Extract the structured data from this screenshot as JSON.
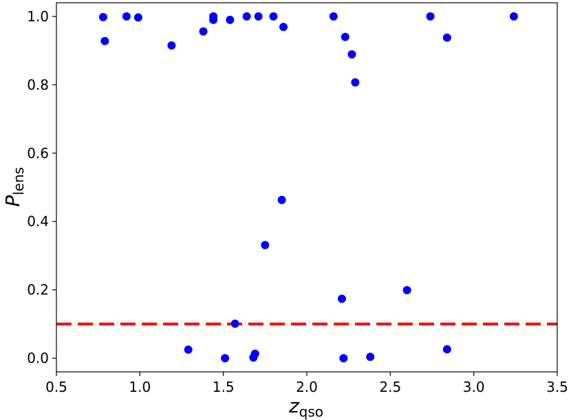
{
  "chart_data": {
    "type": "scatter",
    "title": "",
    "xlabel": {
      "main": "z",
      "sub": "qso"
    },
    "ylabel": {
      "main": "P",
      "sub": "lens"
    },
    "xlim": [
      0.5,
      3.5
    ],
    "ylim": [
      -0.04,
      1.04
    ],
    "xticks": [
      0.5,
      1.0,
      1.5,
      2.0,
      2.5,
      3.0,
      3.5
    ],
    "xtick_labels": [
      "0.5",
      "1.0",
      "1.5",
      "2.0",
      "2.5",
      "3.0",
      "3.5"
    ],
    "yticks": [
      0.0,
      0.2,
      0.4,
      0.6,
      0.8,
      1.0
    ],
    "ytick_labels": [
      "0.0",
      "0.2",
      "0.4",
      "0.6",
      "0.8",
      "1.0"
    ],
    "grid": false,
    "legend": "none",
    "point_color": "#0000ff",
    "threshold": {
      "y": 0.1,
      "style": "dashed",
      "color": "#ff0000"
    },
    "points": [
      {
        "x": 0.78,
        "y": 0.998
      },
      {
        "x": 0.79,
        "y": 0.928
      },
      {
        "x": 0.92,
        "y": 1.0
      },
      {
        "x": 0.99,
        "y": 0.997
      },
      {
        "x": 1.19,
        "y": 0.915
      },
      {
        "x": 1.29,
        "y": 0.025
      },
      {
        "x": 1.38,
        "y": 0.956
      },
      {
        "x": 1.44,
        "y": 1.0
      },
      {
        "x": 1.44,
        "y": 0.99
      },
      {
        "x": 1.51,
        "y": 0.0
      },
      {
        "x": 1.54,
        "y": 0.99
      },
      {
        "x": 1.57,
        "y": 0.101
      },
      {
        "x": 1.64,
        "y": 1.0
      },
      {
        "x": 1.68,
        "y": 0.002
      },
      {
        "x": 1.69,
        "y": 0.013
      },
      {
        "x": 1.71,
        "y": 1.0
      },
      {
        "x": 1.75,
        "y": 0.331
      },
      {
        "x": 1.8,
        "y": 1.0
      },
      {
        "x": 1.85,
        "y": 0.463
      },
      {
        "x": 1.86,
        "y": 0.969
      },
      {
        "x": 2.16,
        "y": 1.0
      },
      {
        "x": 2.21,
        "y": 0.174
      },
      {
        "x": 2.22,
        "y": 0.0
      },
      {
        "x": 2.23,
        "y": 0.94
      },
      {
        "x": 2.27,
        "y": 0.889
      },
      {
        "x": 2.29,
        "y": 0.807
      },
      {
        "x": 2.38,
        "y": 0.004
      },
      {
        "x": 2.6,
        "y": 0.199
      },
      {
        "x": 2.74,
        "y": 1.0
      },
      {
        "x": 2.84,
        "y": 0.938
      },
      {
        "x": 2.84,
        "y": 0.026
      },
      {
        "x": 3.24,
        "y": 1.0
      }
    ]
  }
}
